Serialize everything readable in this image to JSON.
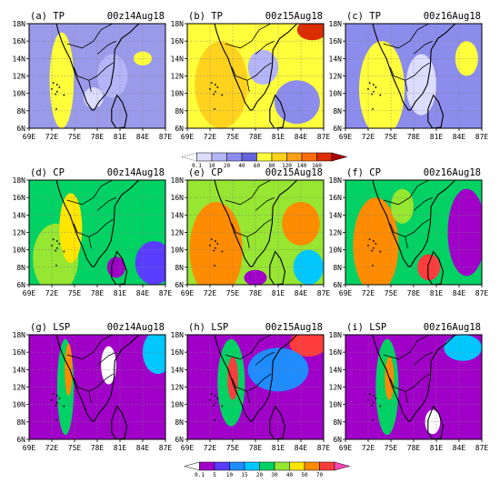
{
  "chart_data": {
    "type": "heatmap",
    "x_ticks": [
      "69E",
      "72E",
      "75E",
      "78E",
      "81E",
      "84E",
      "87E"
    ],
    "y_ticks": [
      "6N",
      "8N",
      "10N",
      "12N",
      "14N",
      "16N",
      "18N"
    ],
    "xlim": [
      69,
      87
    ],
    "ylim": [
      6,
      18
    ],
    "grid": true,
    "colorbars": [
      {
        "ticks": [
          "0.1",
          "10",
          "20",
          "40",
          "60",
          "80",
          "120",
          "140",
          "160"
        ],
        "colors": [
          "#ffffff",
          "#dcdcff",
          "#b4b4f8",
          "#8c8cec",
          "#6464dc",
          "#ffff3c",
          "#ffd21e",
          "#ffa014",
          "#ff6e0a",
          "#dc2d00",
          "#aa0000"
        ]
      },
      {
        "ticks": [
          "0.1",
          "5",
          "10",
          "15",
          "20",
          "30",
          "40",
          "50",
          "70"
        ],
        "colors": [
          "#ffffff",
          "#a000c8",
          "#5a3cff",
          "#1e8cff",
          "#00c8ff",
          "#00d264",
          "#96e632",
          "#ffe600",
          "#ff8c00",
          "#ff3c3c",
          "#ff46b4"
        ]
      }
    ],
    "panels": [
      {
        "title": "(a)  TP",
        "time": "00z14Aug18",
        "variable": "TP",
        "colorbar": 0,
        "background": "#9a9aea",
        "blobs": [
          {
            "lon": 73.3,
            "lat": 11.5,
            "rx": 1.6,
            "ry": 5.5,
            "color": "#ffff3c"
          },
          {
            "lon": 77.5,
            "lat": 9.5,
            "rx": 1.3,
            "ry": 1.2,
            "color": "#dcdcff"
          },
          {
            "lon": 84,
            "lat": 14,
            "rx": 1.2,
            "ry": 0.8,
            "color": "#ffff3c"
          },
          {
            "lon": 80,
            "lat": 12,
            "rx": 2.0,
            "ry": 2.5,
            "color": "#b4b4f8"
          }
        ]
      },
      {
        "title": "(b)  TP",
        "time": "00z15Aug18",
        "variable": "TP",
        "colorbar": 0,
        "background": "#ffff3c",
        "blobs": [
          {
            "lon": 73.5,
            "lat": 11,
            "rx": 3.5,
            "ry": 5,
            "color": "#ffd21e"
          },
          {
            "lon": 85.5,
            "lat": 17.3,
            "rx": 2,
            "ry": 1.2,
            "color": "#dc2d00"
          },
          {
            "lon": 83.5,
            "lat": 9,
            "rx": 3,
            "ry": 2.5,
            "color": "#8c8cec"
          },
          {
            "lon": 79,
            "lat": 13,
            "rx": 2,
            "ry": 2,
            "color": "#b4b4f8"
          }
        ]
      },
      {
        "title": "(c)  TP",
        "time": "00z16Aug18",
        "variable": "TP",
        "colorbar": 0,
        "background": "#8c8cec",
        "blobs": [
          {
            "lon": 73.8,
            "lat": 10.5,
            "rx": 3,
            "ry": 5.5,
            "color": "#ffff3c"
          },
          {
            "lon": 79,
            "lat": 11,
            "rx": 2,
            "ry": 3.5,
            "color": "#dcdcff"
          },
          {
            "lon": 85,
            "lat": 14,
            "rx": 1.5,
            "ry": 2,
            "color": "#ffff3c"
          }
        ]
      },
      {
        "title": "(d)  CP",
        "time": "00z14Aug18",
        "variable": "CP",
        "colorbar": 1,
        "background": "#00d264",
        "blobs": [
          {
            "lon": 72.5,
            "lat": 9,
            "rx": 3,
            "ry": 4,
            "color": "#96e632"
          },
          {
            "lon": 74.5,
            "lat": 12.5,
            "rx": 1.5,
            "ry": 4,
            "color": "#ffe600"
          },
          {
            "lon": 85.5,
            "lat": 8.5,
            "rx": 2.5,
            "ry": 2.5,
            "color": "#5a3cff"
          },
          {
            "lon": 80.5,
            "lat": 8,
            "rx": 1.2,
            "ry": 1.2,
            "color": "#a000c8"
          }
        ]
      },
      {
        "title": "(e)  CP",
        "time": "00z15Aug18",
        "variable": "CP",
        "colorbar": 1,
        "background": "#96e632",
        "blobs": [
          {
            "lon": 72.8,
            "lat": 10,
            "rx": 3.5,
            "ry": 5.5,
            "color": "#ff8c00"
          },
          {
            "lon": 84,
            "lat": 13,
            "rx": 2.5,
            "ry": 2.5,
            "color": "#ff8c00"
          },
          {
            "lon": 85,
            "lat": 8,
            "rx": 2,
            "ry": 2,
            "color": "#00c8ff"
          },
          {
            "lon": 78,
            "lat": 6.8,
            "rx": 1.5,
            "ry": 0.9,
            "color": "#a000c8"
          }
        ]
      },
      {
        "title": "(f)  CP",
        "time": "00z16Aug18",
        "variable": "CP",
        "colorbar": 1,
        "background": "#00d264",
        "blobs": [
          {
            "lon": 73,
            "lat": 10.5,
            "rx": 3,
            "ry": 5.5,
            "color": "#ff8c00"
          },
          {
            "lon": 85,
            "lat": 12,
            "rx": 2.5,
            "ry": 5,
            "color": "#a000c8"
          },
          {
            "lon": 80,
            "lat": 8,
            "rx": 1.5,
            "ry": 1.5,
            "color": "#ff3c3c"
          },
          {
            "lon": 76.5,
            "lat": 15,
            "rx": 1.5,
            "ry": 2,
            "color": "#96e632"
          }
        ]
      },
      {
        "title": "(g)  LSP",
        "time": "00z14Aug18",
        "variable": "LSP",
        "colorbar": 1,
        "background": "#a000c8",
        "blobs": [
          {
            "lon": 73.8,
            "lat": 12,
            "rx": 1.1,
            "ry": 5.5,
            "color": "#00d264"
          },
          {
            "lon": 74.2,
            "lat": 14,
            "rx": 0.5,
            "ry": 3,
            "color": "#ff8c00"
          },
          {
            "lon": 86,
            "lat": 16,
            "rx": 2,
            "ry": 2.5,
            "color": "#00c8ff"
          },
          {
            "lon": 79.5,
            "lat": 14.5,
            "rx": 1,
            "ry": 2.2,
            "color": "#ffffff"
          }
        ]
      },
      {
        "title": "(h)  LSP",
        "time": "00z15Aug18",
        "variable": "LSP",
        "colorbar": 1,
        "background": "#a000c8",
        "blobs": [
          {
            "lon": 74.8,
            "lat": 12.5,
            "rx": 1.8,
            "ry": 5,
            "color": "#00d264"
          },
          {
            "lon": 75,
            "lat": 13,
            "rx": 0.7,
            "ry": 2.5,
            "color": "#ff3c3c"
          },
          {
            "lon": 85,
            "lat": 17,
            "rx": 2.5,
            "ry": 1.5,
            "color": "#ff3c3c"
          },
          {
            "lon": 81,
            "lat": 14,
            "rx": 4,
            "ry": 2.5,
            "color": "#1e8cff"
          }
        ]
      },
      {
        "title": "(i)  LSP",
        "time": "00z16Aug18",
        "variable": "LSP",
        "colorbar": 1,
        "background": "#a000c8",
        "blobs": [
          {
            "lon": 74.5,
            "lat": 12,
            "rx": 1.5,
            "ry": 5.5,
            "color": "#00d264"
          },
          {
            "lon": 74.8,
            "lat": 13,
            "rx": 0.6,
            "ry": 2.5,
            "color": "#ff8c00"
          },
          {
            "lon": 84.5,
            "lat": 16.5,
            "rx": 2.5,
            "ry": 1.5,
            "color": "#00c8ff"
          },
          {
            "lon": 80.5,
            "lat": 8,
            "rx": 1,
            "ry": 1.4,
            "color": "#ffffff"
          }
        ]
      }
    ]
  }
}
